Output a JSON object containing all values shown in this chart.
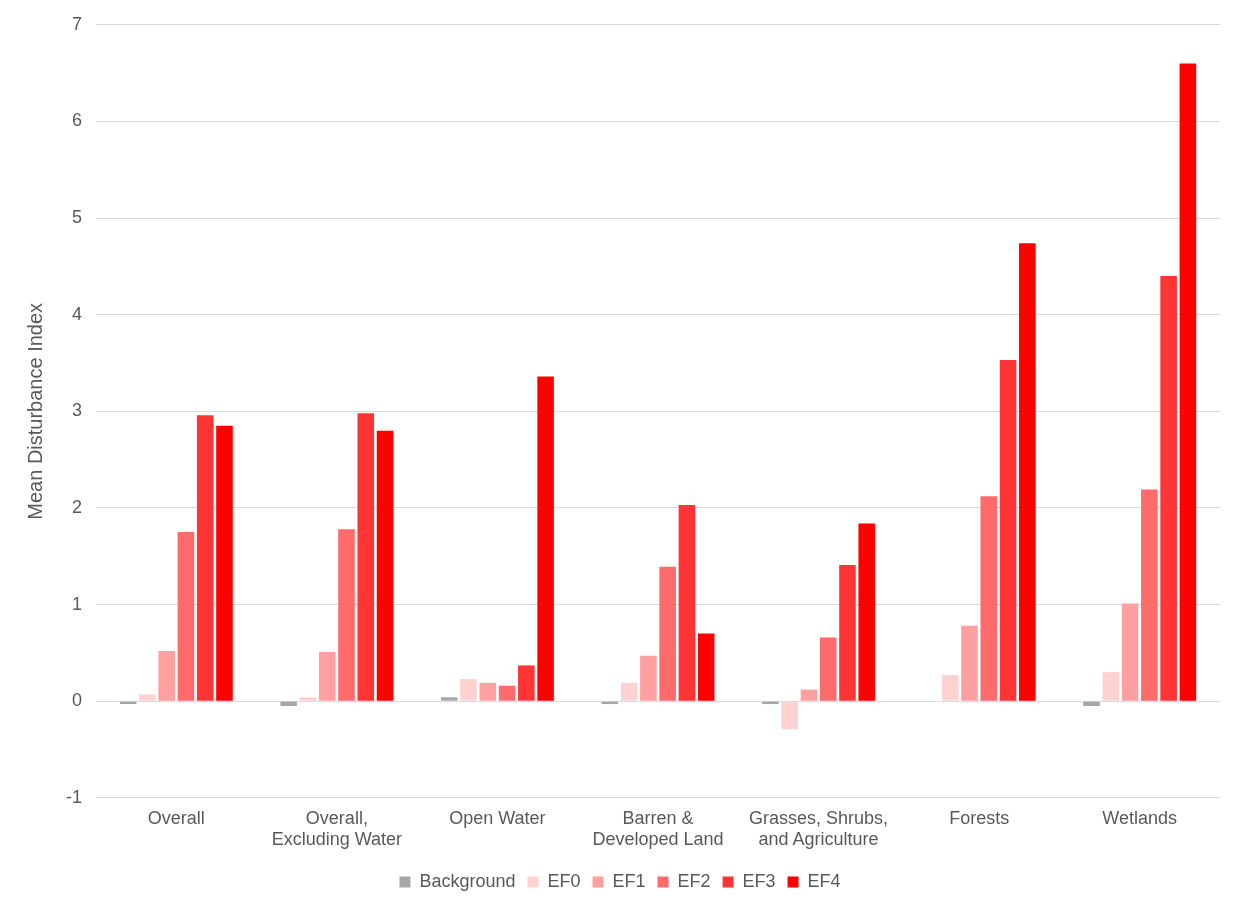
{
  "chart_data": {
    "type": "bar",
    "ylabel": "Mean Disturbance Index",
    "categories": [
      "Overall",
      "Overall, Excluding Water",
      "Open Water",
      "Barren & Developed Land",
      "Grasses, Shrubs, and Agriculture",
      "Forests",
      "Wetlands"
    ],
    "series": [
      {
        "name": "Background",
        "color": "#a6a6a6",
        "values": [
          -0.03,
          -0.05,
          0.04,
          -0.03,
          -0.03,
          null,
          -0.05
        ]
      },
      {
        "name": "EF0",
        "color": "#ffd1d1",
        "values": [
          0.07,
          0.04,
          0.23,
          0.19,
          -0.29,
          0.27,
          0.3
        ]
      },
      {
        "name": "EF1",
        "color": "#ff9f9f",
        "values": [
          0.52,
          0.51,
          0.19,
          0.47,
          0.12,
          0.78,
          1.01
        ]
      },
      {
        "name": "EF2",
        "color": "#ff6b6b",
        "values": [
          1.75,
          1.78,
          0.16,
          1.39,
          0.66,
          2.12,
          2.19
        ]
      },
      {
        "name": "EF3",
        "color": "#ff3535",
        "values": [
          2.96,
          2.98,
          0.37,
          2.03,
          1.41,
          3.53,
          4.4
        ]
      },
      {
        "name": "EF4",
        "color": "#ff0000",
        "values": [
          2.85,
          2.8,
          3.36,
          0.7,
          1.84,
          4.74,
          6.6
        ]
      }
    ],
    "ylim": [
      -1,
      7
    ],
    "yticks": [
      -1,
      0,
      1,
      2,
      3,
      4,
      5,
      6,
      7
    ],
    "grid": "y",
    "legend": "bottom"
  }
}
